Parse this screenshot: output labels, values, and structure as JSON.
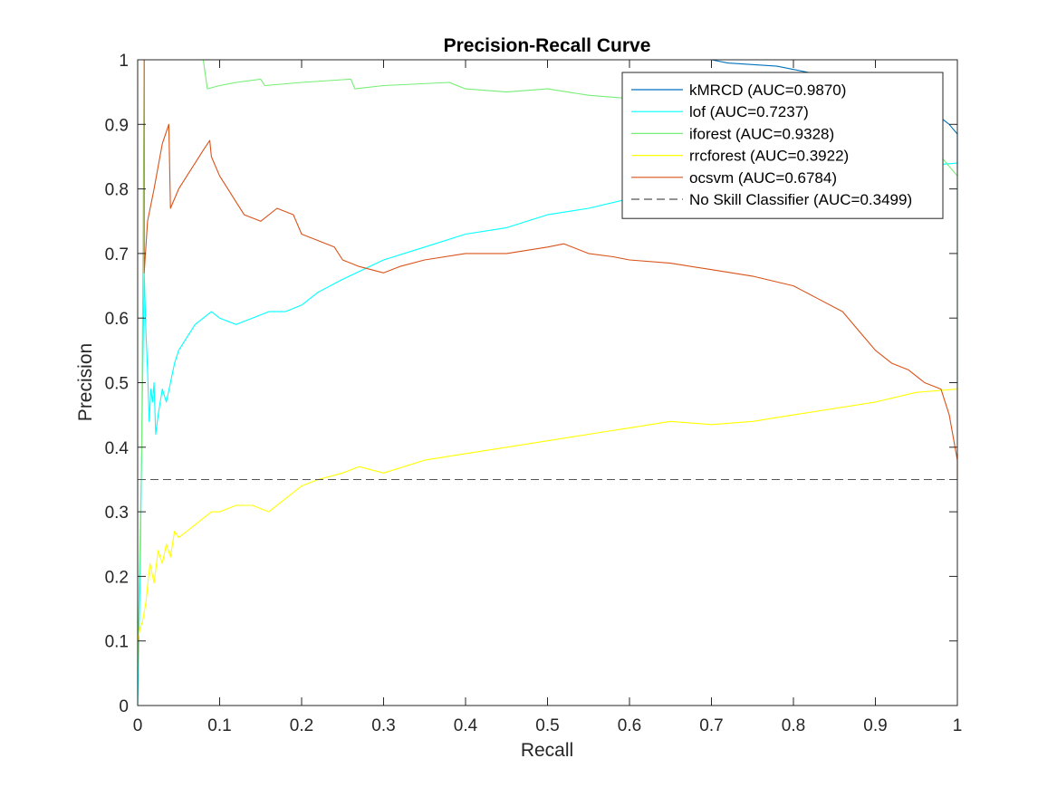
{
  "chart_data": {
    "type": "line",
    "title": "Precision-Recall Curve",
    "xlabel": "Recall",
    "ylabel": "Precision",
    "xlim": [
      0,
      1
    ],
    "ylim": [
      0,
      1
    ],
    "xticks": [
      "0",
      "0.1",
      "0.2",
      "0.3",
      "0.4",
      "0.5",
      "0.6",
      "0.7",
      "0.8",
      "0.9",
      "1"
    ],
    "yticks": [
      "0",
      "0.1",
      "0.2",
      "0.3",
      "0.4",
      "0.5",
      "0.6",
      "0.7",
      "0.8",
      "0.9",
      "1"
    ],
    "grid": false,
    "legend_position": "top-right",
    "series": [
      {
        "name": "kMRCD (AUC=0.9870)",
        "color": "#0072BD",
        "dash": "solid",
        "points": [
          [
            0,
            1
          ],
          [
            0.008,
            1
          ],
          [
            0.1,
            1
          ],
          [
            0.3,
            1
          ],
          [
            0.5,
            1
          ],
          [
            0.7,
            1
          ],
          [
            0.72,
            0.995
          ],
          [
            0.78,
            0.99
          ],
          [
            0.8,
            0.985
          ],
          [
            0.82,
            0.98
          ],
          [
            0.83,
            0.975
          ],
          [
            0.86,
            0.97
          ],
          [
            0.9,
            0.96
          ],
          [
            0.93,
            0.95
          ],
          [
            0.95,
            0.93
          ],
          [
            0.97,
            0.92
          ],
          [
            0.98,
            0.91
          ],
          [
            0.99,
            0.9
          ],
          [
            1,
            0.885
          ],
          [
            1,
            0.83
          ]
        ]
      },
      {
        "name": "lof (AUC=0.7237)",
        "color": "#00FFFF",
        "dash": "solid",
        "points": [
          [
            0,
            0
          ],
          [
            0.003,
            0.2
          ],
          [
            0.006,
            0.5
          ],
          [
            0.008,
            0.67
          ],
          [
            0.01,
            0.58
          ],
          [
            0.012,
            0.52
          ],
          [
            0.014,
            0.44
          ],
          [
            0.016,
            0.49
          ],
          [
            0.018,
            0.47
          ],
          [
            0.02,
            0.5
          ],
          [
            0.022,
            0.42
          ],
          [
            0.025,
            0.45
          ],
          [
            0.03,
            0.49
          ],
          [
            0.035,
            0.47
          ],
          [
            0.04,
            0.5
          ],
          [
            0.045,
            0.53
          ],
          [
            0.05,
            0.55
          ],
          [
            0.06,
            0.57
          ],
          [
            0.07,
            0.59
          ],
          [
            0.08,
            0.6
          ],
          [
            0.09,
            0.61
          ],
          [
            0.1,
            0.6
          ],
          [
            0.12,
            0.59
          ],
          [
            0.14,
            0.6
          ],
          [
            0.16,
            0.61
          ],
          [
            0.18,
            0.61
          ],
          [
            0.2,
            0.62
          ],
          [
            0.22,
            0.64
          ],
          [
            0.25,
            0.66
          ],
          [
            0.3,
            0.69
          ],
          [
            0.35,
            0.71
          ],
          [
            0.4,
            0.73
          ],
          [
            0.45,
            0.74
          ],
          [
            0.5,
            0.76
          ],
          [
            0.55,
            0.77
          ],
          [
            0.6,
            0.785
          ],
          [
            0.65,
            0.79
          ],
          [
            0.7,
            0.8
          ],
          [
            0.75,
            0.81
          ],
          [
            0.8,
            0.82
          ],
          [
            0.85,
            0.825
          ],
          [
            0.9,
            0.83
          ],
          [
            0.95,
            0.835
          ],
          [
            1,
            0.84
          ]
        ]
      },
      {
        "name": "iforest (AUC=0.9328)",
        "color": "#77EE77",
        "dash": "solid",
        "points": [
          [
            0,
            0.05
          ],
          [
            0.005,
            0.4
          ],
          [
            0.008,
            1
          ],
          [
            0.05,
            1
          ],
          [
            0.08,
            1
          ],
          [
            0.085,
            0.955
          ],
          [
            0.1,
            0.96
          ],
          [
            0.12,
            0.965
          ],
          [
            0.15,
            0.97
          ],
          [
            0.155,
            0.96
          ],
          [
            0.2,
            0.965
          ],
          [
            0.26,
            0.97
          ],
          [
            0.265,
            0.955
          ],
          [
            0.3,
            0.96
          ],
          [
            0.38,
            0.965
          ],
          [
            0.4,
            0.955
          ],
          [
            0.45,
            0.95
          ],
          [
            0.5,
            0.955
          ],
          [
            0.55,
            0.945
          ],
          [
            0.6,
            0.94
          ],
          [
            0.65,
            0.93
          ],
          [
            0.7,
            0.93
          ],
          [
            0.75,
            0.925
          ],
          [
            0.8,
            0.93
          ],
          [
            0.85,
            0.92
          ],
          [
            0.9,
            0.905
          ],
          [
            0.95,
            0.9
          ],
          [
            0.98,
            0.85
          ],
          [
            1,
            0.82
          ],
          [
            1,
            0.49
          ]
        ]
      },
      {
        "name": "rrcforest (AUC=0.3922)",
        "color": "#FFFF00",
        "dash": "solid",
        "points": [
          [
            0,
            0.1
          ],
          [
            0.003,
            0.12
          ],
          [
            0.006,
            0.13
          ],
          [
            0.01,
            0.16
          ],
          [
            0.015,
            0.22
          ],
          [
            0.02,
            0.19
          ],
          [
            0.025,
            0.24
          ],
          [
            0.03,
            0.22
          ],
          [
            0.035,
            0.25
          ],
          [
            0.04,
            0.23
          ],
          [
            0.045,
            0.27
          ],
          [
            0.05,
            0.26
          ],
          [
            0.06,
            0.27
          ],
          [
            0.07,
            0.28
          ],
          [
            0.08,
            0.29
          ],
          [
            0.09,
            0.3
          ],
          [
            0.1,
            0.3
          ],
          [
            0.12,
            0.31
          ],
          [
            0.14,
            0.31
          ],
          [
            0.16,
            0.3
          ],
          [
            0.18,
            0.32
          ],
          [
            0.2,
            0.34
          ],
          [
            0.22,
            0.35
          ],
          [
            0.25,
            0.36
          ],
          [
            0.27,
            0.37
          ],
          [
            0.3,
            0.36
          ],
          [
            0.35,
            0.38
          ],
          [
            0.4,
            0.39
          ],
          [
            0.45,
            0.4
          ],
          [
            0.5,
            0.41
          ],
          [
            0.55,
            0.42
          ],
          [
            0.6,
            0.43
          ],
          [
            0.65,
            0.44
          ],
          [
            0.7,
            0.435
          ],
          [
            0.75,
            0.44
          ],
          [
            0.8,
            0.45
          ],
          [
            0.85,
            0.46
          ],
          [
            0.9,
            0.47
          ],
          [
            0.95,
            0.485
          ],
          [
            1,
            0.49
          ]
        ]
      },
      {
        "name": "ocsvm (AUC=0.6784)",
        "color": "#D95319",
        "dash": "solid",
        "points": [
          [
            0.008,
            1
          ],
          [
            0.008,
            0.67
          ],
          [
            0.012,
            0.75
          ],
          [
            0.02,
            0.8
          ],
          [
            0.03,
            0.87
          ],
          [
            0.038,
            0.9
          ],
          [
            0.04,
            0.77
          ],
          [
            0.05,
            0.8
          ],
          [
            0.06,
            0.82
          ],
          [
            0.07,
            0.84
          ],
          [
            0.08,
            0.86
          ],
          [
            0.088,
            0.875
          ],
          [
            0.09,
            0.85
          ],
          [
            0.1,
            0.82
          ],
          [
            0.11,
            0.8
          ],
          [
            0.12,
            0.78
          ],
          [
            0.13,
            0.76
          ],
          [
            0.15,
            0.75
          ],
          [
            0.17,
            0.77
          ],
          [
            0.19,
            0.76
          ],
          [
            0.2,
            0.73
          ],
          [
            0.22,
            0.72
          ],
          [
            0.24,
            0.71
          ],
          [
            0.25,
            0.69
          ],
          [
            0.27,
            0.68
          ],
          [
            0.3,
            0.67
          ],
          [
            0.32,
            0.68
          ],
          [
            0.35,
            0.69
          ],
          [
            0.4,
            0.7
          ],
          [
            0.45,
            0.7
          ],
          [
            0.5,
            0.71
          ],
          [
            0.52,
            0.715
          ],
          [
            0.55,
            0.7
          ],
          [
            0.58,
            0.695
          ],
          [
            0.6,
            0.69
          ],
          [
            0.65,
            0.685
          ],
          [
            0.7,
            0.675
          ],
          [
            0.75,
            0.665
          ],
          [
            0.8,
            0.65
          ],
          [
            0.83,
            0.63
          ],
          [
            0.86,
            0.61
          ],
          [
            0.88,
            0.58
          ],
          [
            0.9,
            0.55
          ],
          [
            0.92,
            0.53
          ],
          [
            0.94,
            0.52
          ],
          [
            0.96,
            0.5
          ],
          [
            0.98,
            0.49
          ],
          [
            0.99,
            0.45
          ],
          [
            1,
            0.38
          ],
          [
            1,
            0.35
          ]
        ]
      },
      {
        "name": "No Skill Classifier (AUC=0.3499)",
        "color": "#555555",
        "dash": "dashed",
        "points": [
          [
            0,
            0.35
          ],
          [
            1,
            0.35
          ]
        ]
      }
    ]
  }
}
